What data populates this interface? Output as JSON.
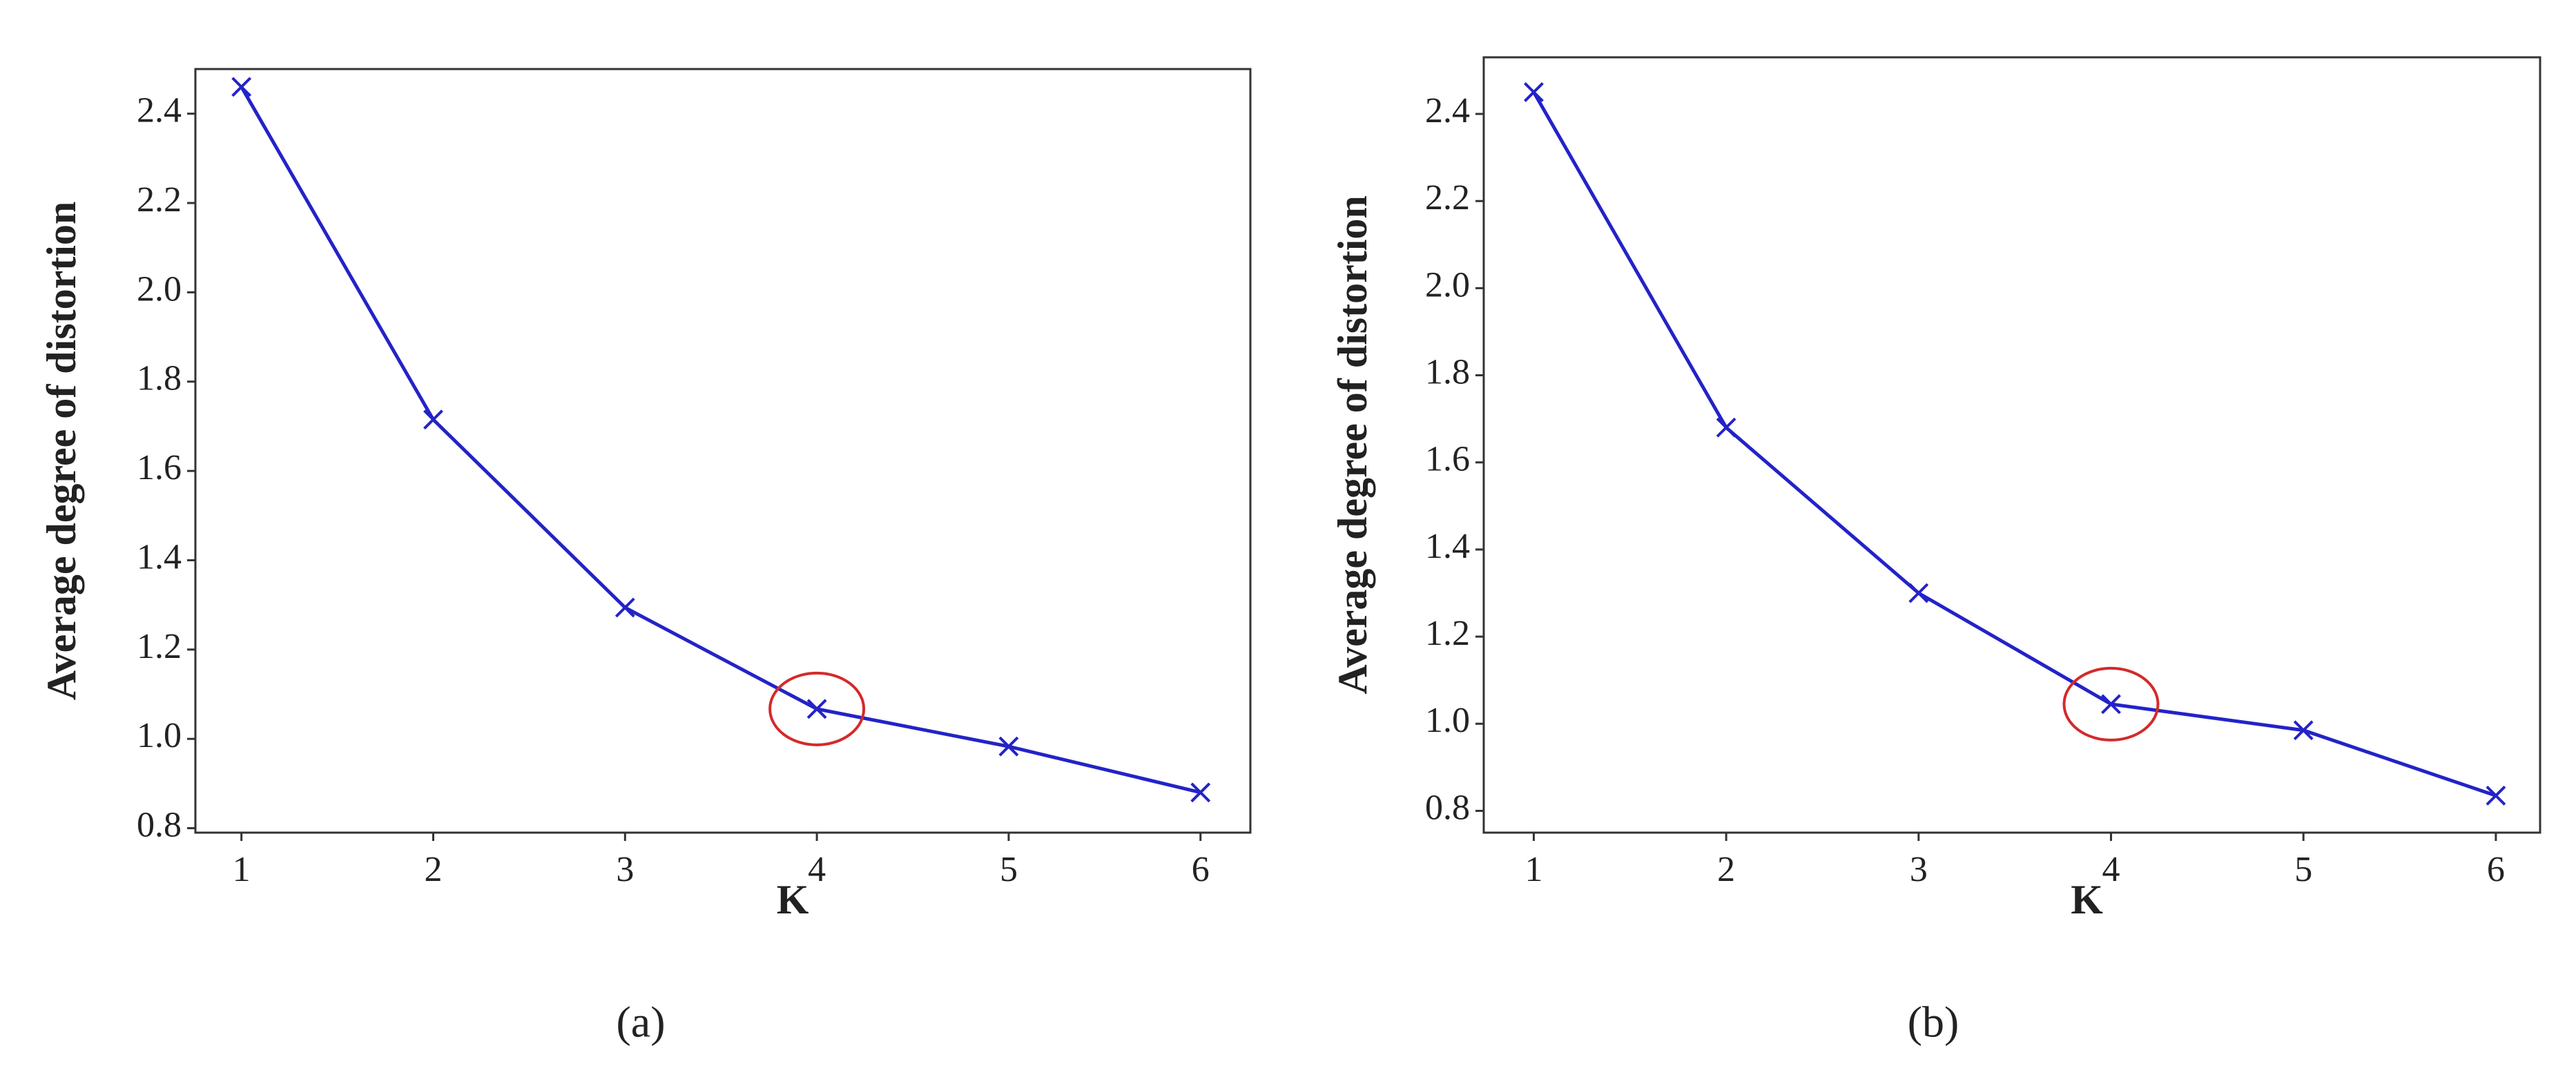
{
  "chart_data": [
    {
      "type": "line",
      "panel_label": "(a)",
      "xlabel": "K",
      "ylabel": "Average degree of distortion",
      "x": [
        1,
        2,
        3,
        4,
        5,
        6
      ],
      "series": [
        {
          "color": "#2323c8",
          "values": [
            2.46,
            1.715,
            1.294,
            1.067,
            0.983,
            0.88
          ]
        }
      ],
      "xlim": [
        0.76,
        6.26
      ],
      "xticks": [
        1,
        2,
        3,
        4,
        5,
        6
      ],
      "ylim": [
        0.79,
        2.5
      ],
      "yticks": [
        0.8,
        1.0,
        1.2,
        1.4,
        1.6,
        1.8,
        2.0,
        2.2,
        2.4
      ],
      "grid": false
    },
    {
      "type": "line",
      "panel_label": "(b)",
      "xlabel": "K",
      "ylabel": "Average degree of distortion",
      "x": [
        1,
        2,
        3,
        4,
        5,
        6
      ],
      "series": [
        {
          "color": "#2323c8",
          "values": [
            2.45,
            1.68,
            1.3,
            1.045,
            0.985,
            0.835
          ]
        }
      ],
      "xlim": [
        0.74,
        6.23
      ],
      "xticks": [
        1,
        2,
        3,
        4,
        5,
        6
      ],
      "ylim": [
        0.75,
        2.53
      ],
      "yticks": [
        0.8,
        1.0,
        1.2,
        1.4,
        1.6,
        1.8,
        2.0,
        2.2,
        2.4
      ],
      "grid": false
    }
  ]
}
